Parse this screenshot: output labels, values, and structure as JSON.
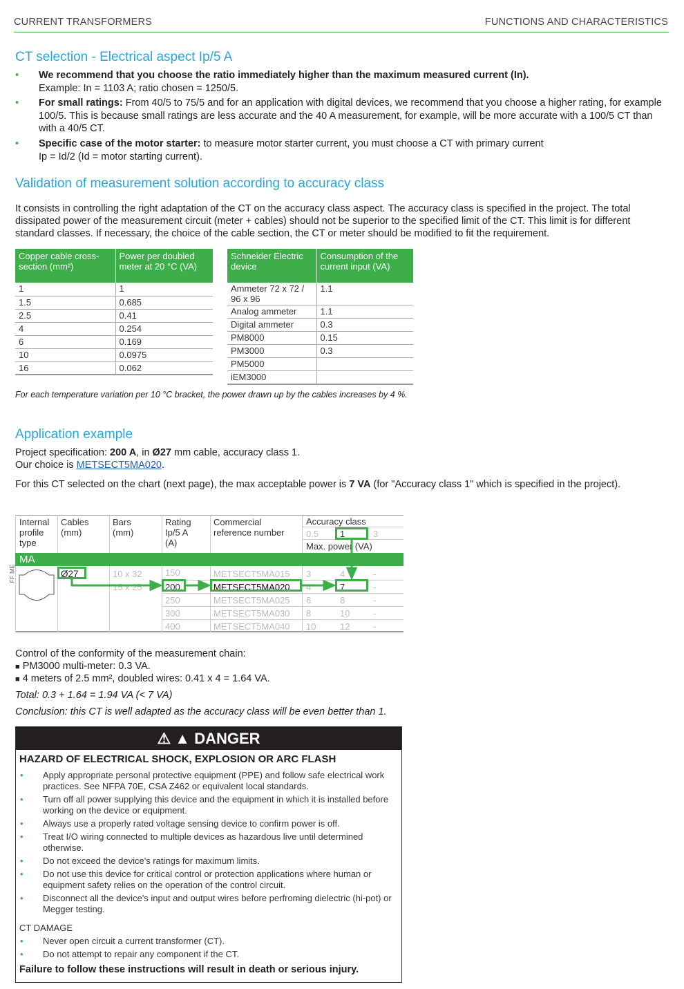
{
  "header": {
    "left": "CURRENT TRANSFORMERS",
    "right": "FUNCTIONS AND CHARACTERISTICS"
  },
  "side_label": "FF ME",
  "section1": {
    "title": "CT selection - Electrical aspect Ip/5 A",
    "bullets": [
      {
        "bold": "We recommend that you choose the ratio immediately higher than the maximum measured current (In).",
        "text": "",
        "line2": "Example:  In = 1103 A; ratio chosen = 1250/5."
      },
      {
        "bold": "For small ratings:",
        "text": " From 40/5 to 75/5 and for an application with digital devices, we recommend that you choose a higher rating, for example 100/5. This is because small ratings are less accurate and the 40 A measurement, for example, will be more accurate with a 100/5 CT than with a 40/5 CT.",
        "line2": ""
      },
      {
        "bold": "Specific case of the motor starter:",
        "text": " to measure motor starter current, you must choose a CT with primary current",
        "line2": "Ip = Id/2 (Id = motor starting current)."
      }
    ]
  },
  "section2": {
    "title": "Validation of measurement solution according to accuracy class",
    "intro": "It consists in controlling the right adaptation of the CT on the accuracy class aspect. The accuracy class is specified in the project. The total dissipated power of the measurement circuit (meter + cables) should not be superior to the specified limit of the CT. This limit is for different standard classes. If necessary, the choice of the cable section, the CT or meter should be modified to fit the requirement.",
    "cable_table": {
      "headers": [
        "Copper cable cross-section (mm²)",
        "Power per doubled meter at 20 °C (VA)"
      ],
      "rows": [
        [
          "1",
          "1"
        ],
        [
          "1.5",
          "0.685"
        ],
        [
          "2.5",
          "0.41"
        ],
        [
          "4",
          "0.254"
        ],
        [
          "6",
          "0.169"
        ],
        [
          "10",
          "0.0975"
        ],
        [
          "16",
          "0.062"
        ]
      ]
    },
    "device_table": {
      "headers": [
        "Schneider Electric device",
        "Consumption of the current input (VA)"
      ],
      "rows": [
        [
          "Ammeter 72 x 72 / 96 x 96",
          "1.1"
        ],
        [
          "Analog ammeter",
          "1.1"
        ],
        [
          "Digital ammeter",
          "0.3"
        ],
        [
          "PM8000",
          "0.15"
        ],
        [
          "PM3000",
          "0.3"
        ],
        [
          "PM5000",
          ""
        ],
        [
          "iEM3000",
          ""
        ]
      ]
    },
    "note": "For each temperature variation per 10 °C bracket, the power drawn up by the cables increases by 4 %."
  },
  "section3": {
    "title": "Application example",
    "spec_a": "Project specification: ",
    "spec_b": "200 A",
    "spec_c": ", in ",
    "spec_d": "Ø27",
    "spec_e": " mm cable, accuracy class 1.",
    "choice_a": "Our choice is ",
    "choice_link": "METSECT5MA020",
    "choice_b": ".",
    "chart_a": "For this CT selected on the chart (next page), the max acceptable power is ",
    "chart_b": "7 VA",
    "chart_c": " (for \"Accuracy class 1\" which is specified in the project).",
    "table": {
      "headers": {
        "profile": "Internal profile type",
        "cables": "Cables (mm)",
        "bars": "Bars (mm)",
        "rating": "Rating Ip/5 A (A)",
        "ref": "Commercial reference number",
        "accuracy": "Accuracy class",
        "classes": [
          "0.5",
          "1",
          "3"
        ],
        "maxpower": "Max. power (VA)"
      },
      "group": "MA",
      "cable": "Ø27",
      "bars": [
        "10 x 32",
        "15 x 25"
      ],
      "rows": [
        [
          "150",
          "METSECT5MA015",
          "3",
          "4",
          "-"
        ],
        [
          "200",
          "METSECT5MA020",
          "4",
          "7",
          "-"
        ],
        [
          "250",
          "METSECT5MA025",
          "6",
          "8",
          "-"
        ],
        [
          "300",
          "METSECT5MA030",
          "8",
          "10",
          "-"
        ],
        [
          "400",
          "METSECT5MA040",
          "10",
          "12",
          "-"
        ]
      ],
      "highlight_color": "#3dae49"
    },
    "control": "Control of the conformity of the measurement chain:",
    "items": [
      "PM3000 multi-meter: 0.3 VA.",
      "4 meters of 2.5 mm², doubled wires: 0.41 x 4 = 1.64 VA."
    ],
    "total": "Total: 0.3 + 1.64 = 1.94 VA (< 7 VA)",
    "conclusion": "Conclusion: this CT is well adapted as the accuracy class will be even better than 1."
  },
  "danger": {
    "title": "DANGER",
    "hazard": "HAZARD OF ELECTRICAL SHOCK, EXPLOSION OR ARC FLASH",
    "items": [
      "Apply appropriate personal protective equipment (PPE) and follow safe electrical work practices. See NFPA 70E, CSA Z462 or equivalent local standards.",
      "Turn off all power supplying this device and the equipment in which it is installed before working on the device or equipment.",
      "Always use a properly rated voltage sensing device to confirm power is off.",
      "Treat I/O wiring connected to multiple devices as hazardous live until determined otherwise.",
      "Do not exceed the device's ratings for maximum limits.",
      "Do not use this device for critical control or protection applications where human or equipment safety relies on the operation of the control circuit.",
      "Disconnect all the device's input and output wires before perfroming dielectric (hi-pot) or Megger testing."
    ],
    "ct_title": "CT DAMAGE",
    "ct_items": [
      "Never open circuit a current transformer (CT).",
      "Do not attempt to repair any component if the CT."
    ],
    "footer": "Failure to follow these instructions will result in death or serious injury."
  },
  "colors": {
    "accent": "#3dae49",
    "heading": "#2aa6d6",
    "link": "#1f5fa8"
  }
}
